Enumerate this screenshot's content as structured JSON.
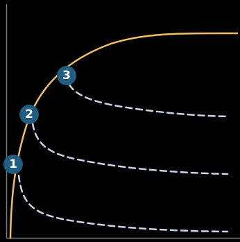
{
  "colors": {
    "background": "#000000",
    "frame": "#7a7a7a",
    "main_curve": "#f2c063",
    "branch_curves": "#c8d6e6",
    "marker_fill": "#1f5e80",
    "marker_text": "#ffffff"
  },
  "markers": [
    {
      "label": "1"
    },
    {
      "label": "2"
    },
    {
      "label": "3"
    }
  ]
}
